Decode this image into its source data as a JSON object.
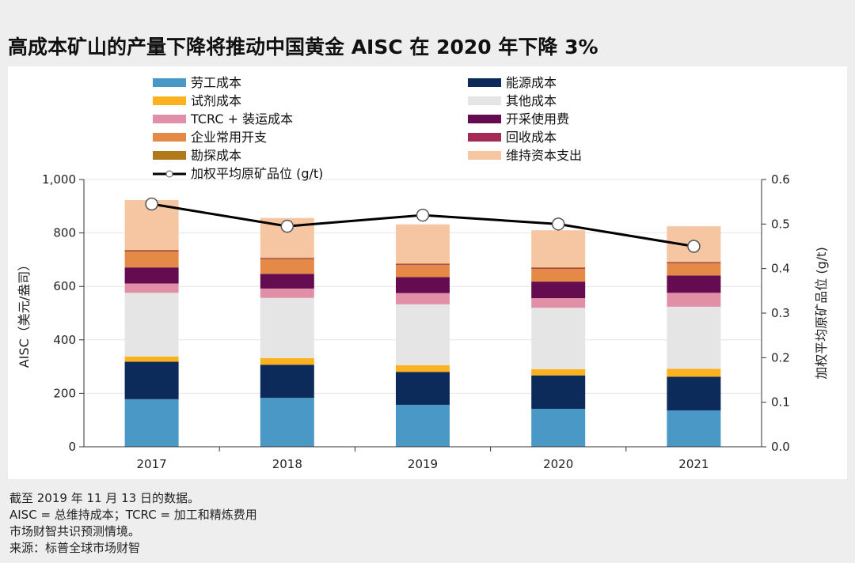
{
  "title": "高成本矿山的产量下降将推动中国黄金 AISC 在 2020 年下降 3%",
  "notes": [
    "截至 2019 年 11 月 13 日的数据。",
    "AISC = 总维持成本；TCRC = 加工和精炼费用",
    "市场财智共识预测情境。",
    "来源：标普全球市场财智"
  ],
  "chart_data": {
    "type": "bar",
    "stacked": true,
    "categories": [
      "2017",
      "2018",
      "2019",
      "2020",
      "2021"
    ],
    "ylabel": "AISC（美元/盎司）",
    "y2label": "加权平均原矿品位 (g/t)",
    "ylim": [
      0,
      1000
    ],
    "y2lim": [
      0,
      0.6
    ],
    "yticks": [
      "0",
      "200",
      "400",
      "600",
      "800",
      "1,000"
    ],
    "y2ticks": [
      "0.0",
      "0.1",
      "0.2",
      "0.3",
      "0.4",
      "0.5",
      "0.6"
    ],
    "legend_position": "top",
    "series": [
      {
        "name": "劳工成本",
        "color": "#4a98c5",
        "values": [
          178,
          183,
          157,
          142,
          136
        ]
      },
      {
        "name": "能源成本",
        "color": "#0c2a5a",
        "values": [
          140,
          124,
          123,
          125,
          126
        ]
      },
      {
        "name": "试剂成本",
        "color": "#fbb21e",
        "values": [
          20,
          25,
          25,
          23,
          30
        ]
      },
      {
        "name": "其他成本",
        "color": "#e5e5e5",
        "values": [
          238,
          225,
          228,
          230,
          232
        ]
      },
      {
        "name": "TCRC + 装运成本",
        "color": "#e08fa6",
        "values": [
          35,
          35,
          42,
          36,
          52
        ]
      },
      {
        "name": "开采使用费",
        "color": "#650b4f",
        "values": [
          60,
          55,
          60,
          62,
          65
        ]
      },
      {
        "name": "企业常用开支",
        "color": "#e58a46",
        "values": [
          60,
          55,
          45,
          48,
          45
        ]
      },
      {
        "name": "回收成本",
        "color": "#a42b58",
        "values": [
          3,
          3,
          3,
          3,
          3
        ]
      },
      {
        "name": "勘探成本",
        "color": "#b07a1a",
        "values": [
          3,
          3,
          3,
          3,
          3
        ]
      },
      {
        "name": "维持资本支出",
        "color": "#f6c5a1",
        "values": [
          186,
          148,
          146,
          138,
          133
        ]
      }
    ],
    "line_series": {
      "name": "加权平均原矿品位 (g/t)",
      "color": "#000000",
      "values": [
        0.545,
        0.495,
        0.52,
        0.5,
        0.45
      ]
    }
  }
}
